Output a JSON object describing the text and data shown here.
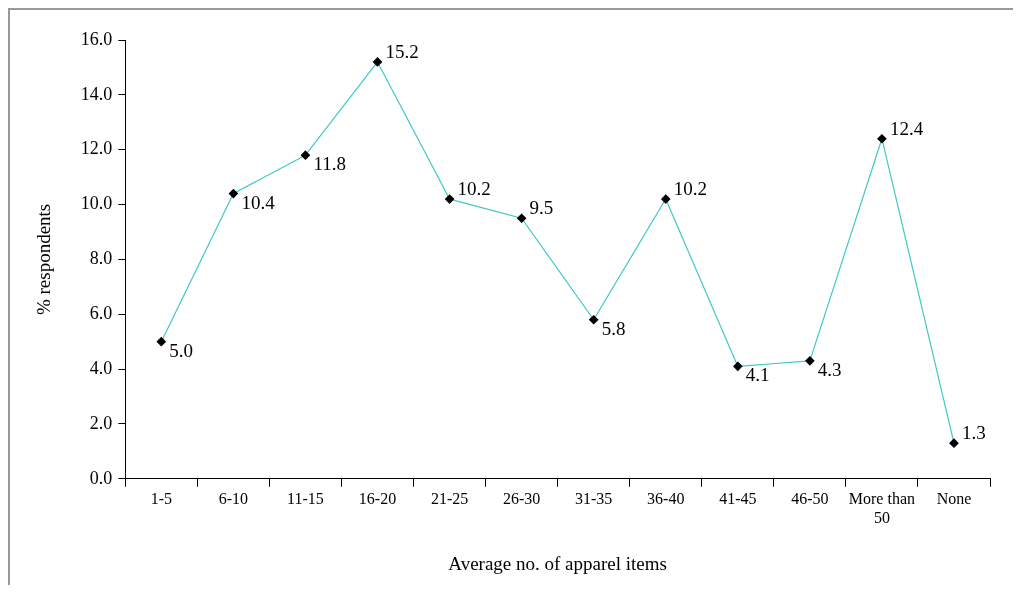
{
  "chart_data": {
    "type": "line",
    "xlabel": "Average no. of apparel items",
    "ylabel": "% respondents",
    "categories": [
      "1-5",
      "6-10",
      "11-15",
      "16-20",
      "21-25",
      "26-30",
      "31-35",
      "36-40",
      "41-45",
      "46-50",
      "More than 50",
      "None"
    ],
    "series": [
      {
        "color": "#40c8c8",
        "values": [
          5.0,
          10.4,
          11.8,
          15.2,
          10.2,
          9.5,
          5.8,
          10.2,
          4.1,
          4.3,
          12.4,
          1.3
        ],
        "value_labels": [
          "5.0",
          "10.4",
          "11.8",
          "15.2",
          "10.2",
          "9.5",
          "5.8",
          "10.2",
          "4.1",
          "4.3",
          "12.4",
          "1.3"
        ]
      }
    ],
    "ylim": [
      0,
      16
    ],
    "yticks": [
      {
        "value": 0,
        "label": "0.0"
      },
      {
        "value": 2,
        "label": "2.0"
      },
      {
        "value": 4,
        "label": "4.0"
      },
      {
        "value": 6,
        "label": "6.0"
      },
      {
        "value": 8,
        "label": "8.0"
      },
      {
        "value": 10,
        "label": "10.0"
      },
      {
        "value": 12,
        "label": "12.0"
      },
      {
        "value": 14,
        "label": "14.0"
      },
      {
        "value": 16,
        "label": "16.0"
      }
    ],
    "marker": "diamond",
    "line_style": "solid"
  }
}
